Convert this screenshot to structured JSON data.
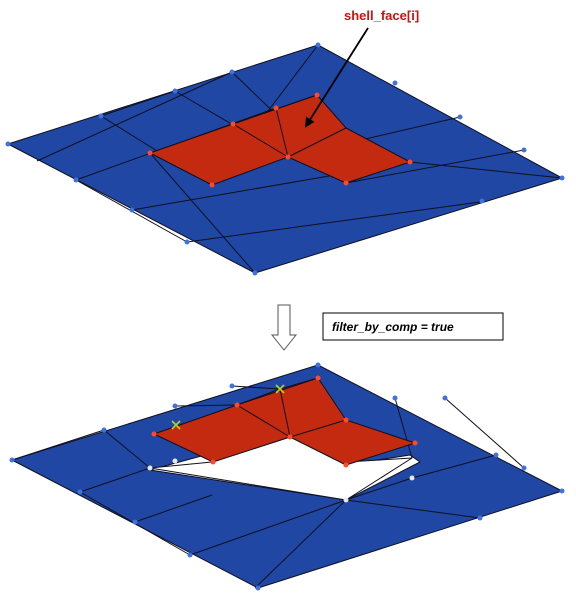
{
  "annotation": {
    "text": "shell_face[i]"
  },
  "filter_label": {
    "text": "filter_by_comp = true"
  },
  "colors": {
    "blue_face": "#1f47a3",
    "red_face": "#c42a10",
    "edge": "#101020",
    "blue_node": "#3f72e0",
    "red_node": "#ff4a2a",
    "white_node": "#e8e8e8",
    "marker": "#b8d020",
    "arrow_outline": "#555555"
  },
  "icons": [
    "down-arrow-icon",
    "pointer-arrow-icon"
  ]
}
